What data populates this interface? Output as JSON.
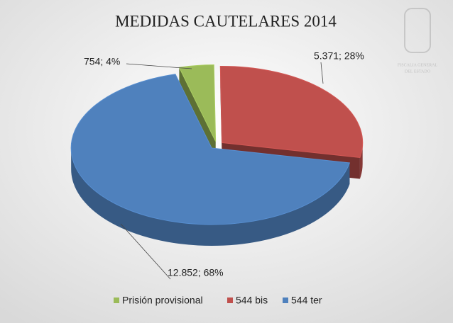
{
  "chart_data": {
    "type": "pie3d",
    "title": "MEDIDAS CAUTELARES 2014",
    "categories": [
      "Prisión provisional",
      "544 bis",
      "544 ter"
    ],
    "values": [
      754,
      5371,
      12852
    ],
    "value_labels": [
      "754; 4%",
      "5.371; 28%",
      "12.852; 68%"
    ],
    "colors": [
      "#9bbb59",
      "#c0504d",
      "#4f81bd"
    ],
    "legend": "bottom"
  },
  "logo": {
    "lines": [
      "FISCALIA GENERAL",
      "DEL ESTADO"
    ]
  }
}
